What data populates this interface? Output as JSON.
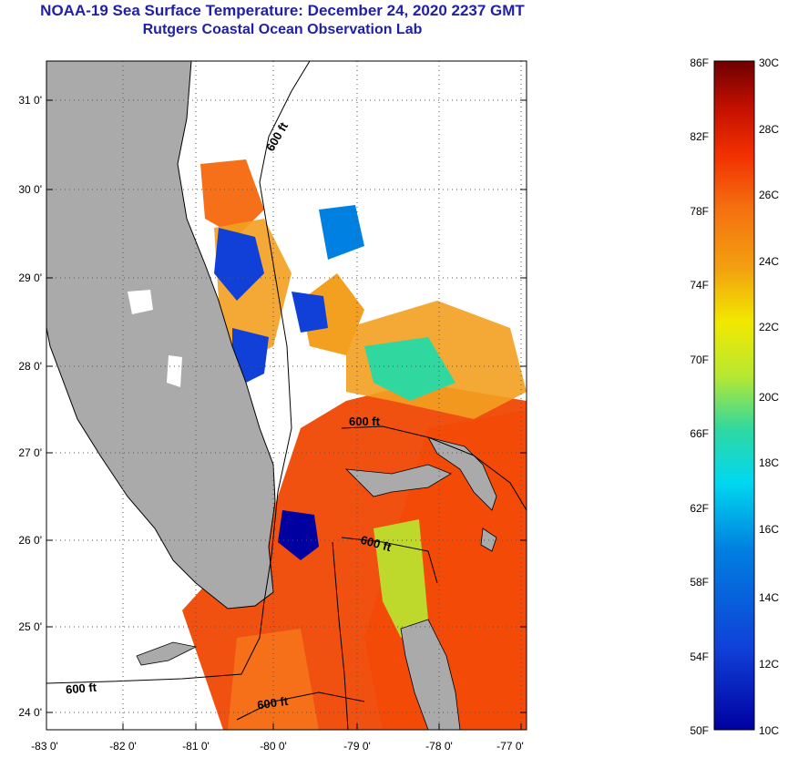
{
  "header": {
    "title": "NOAA-19 Sea Surface Temperature:  December 24, 2020 2237 GMT",
    "subtitle": "Rutgers Coastal Ocean Observation Lab"
  },
  "map": {
    "lat_labels": [
      "31 0'",
      "30 0'",
      "29 0'",
      "28 0'",
      "27 0'",
      "26 0'",
      "25 0'",
      "24 0'"
    ],
    "lon_labels": [
      "-83 0'",
      "-82 0'",
      "-81 0'",
      "-80 0'",
      "-79 0'",
      "-78 0'",
      "-77 0'"
    ],
    "contours": [
      "600 ft",
      "600 ft",
      "600 ft",
      "600 ft",
      "600 ft"
    ]
  },
  "colorbar": {
    "f_labels": [
      "86F",
      "82F",
      "78F",
      "74F",
      "70F",
      "66F",
      "62F",
      "58F",
      "54F",
      "50F"
    ],
    "c_labels": [
      "30C",
      "28C",
      "26C",
      "24C",
      "22C",
      "20C",
      "18C",
      "16C",
      "14C",
      "12C",
      "10C"
    ],
    "colors": [
      "#6e0000",
      "#c41000",
      "#f23000",
      "#f57010",
      "#f3a010",
      "#f2e800",
      "#b8e830",
      "#30d8a0",
      "#00d8f0",
      "#0080e0",
      "#1040d8",
      "#0000a0"
    ]
  }
}
